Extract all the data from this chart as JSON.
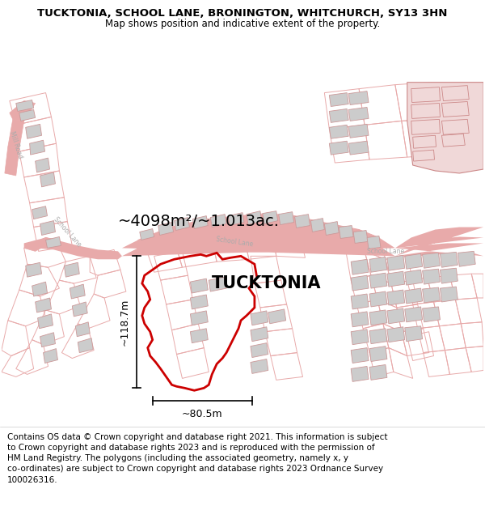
{
  "title": "TUCKTONIA, SCHOOL LANE, BRONINGTON, WHITCHURCH, SY13 3HN",
  "subtitle": "Map shows position and indicative extent of the property.",
  "footer": "Contains OS data © Crown copyright and database right 2021. This information is subject\nto Crown copyright and database rights 2023 and is reproduced with the permission of\nHM Land Registry. The polygons (including the associated geometry, namely x, y\nco-ordinates) are subject to Crown copyright and database rights 2023 Ordnance Survey\n100026316.",
  "bg_color": "#ffffff",
  "area_label": "~4098m²/~1.013ac.",
  "property_label": "TUCKTONIA",
  "height_label": "~118.7m",
  "width_label": "~80.5m",
  "road_color": "#e8aaaa",
  "building_fill": "#cccccc",
  "building_edge": "#cc9999",
  "highlight_fill": "#f0d8d8",
  "highlight_edge": "#cc8888",
  "property_color": "#cc0000",
  "dim_color": "#000000",
  "road_label_color": "#aaaaaa",
  "title_fontsize": 9.5,
  "subtitle_fontsize": 8.5,
  "footer_fontsize": 7.5,
  "area_fontsize": 14,
  "prop_label_fontsize": 15,
  "dim_fontsize": 9,
  "road_label_fontsize": 5.5
}
